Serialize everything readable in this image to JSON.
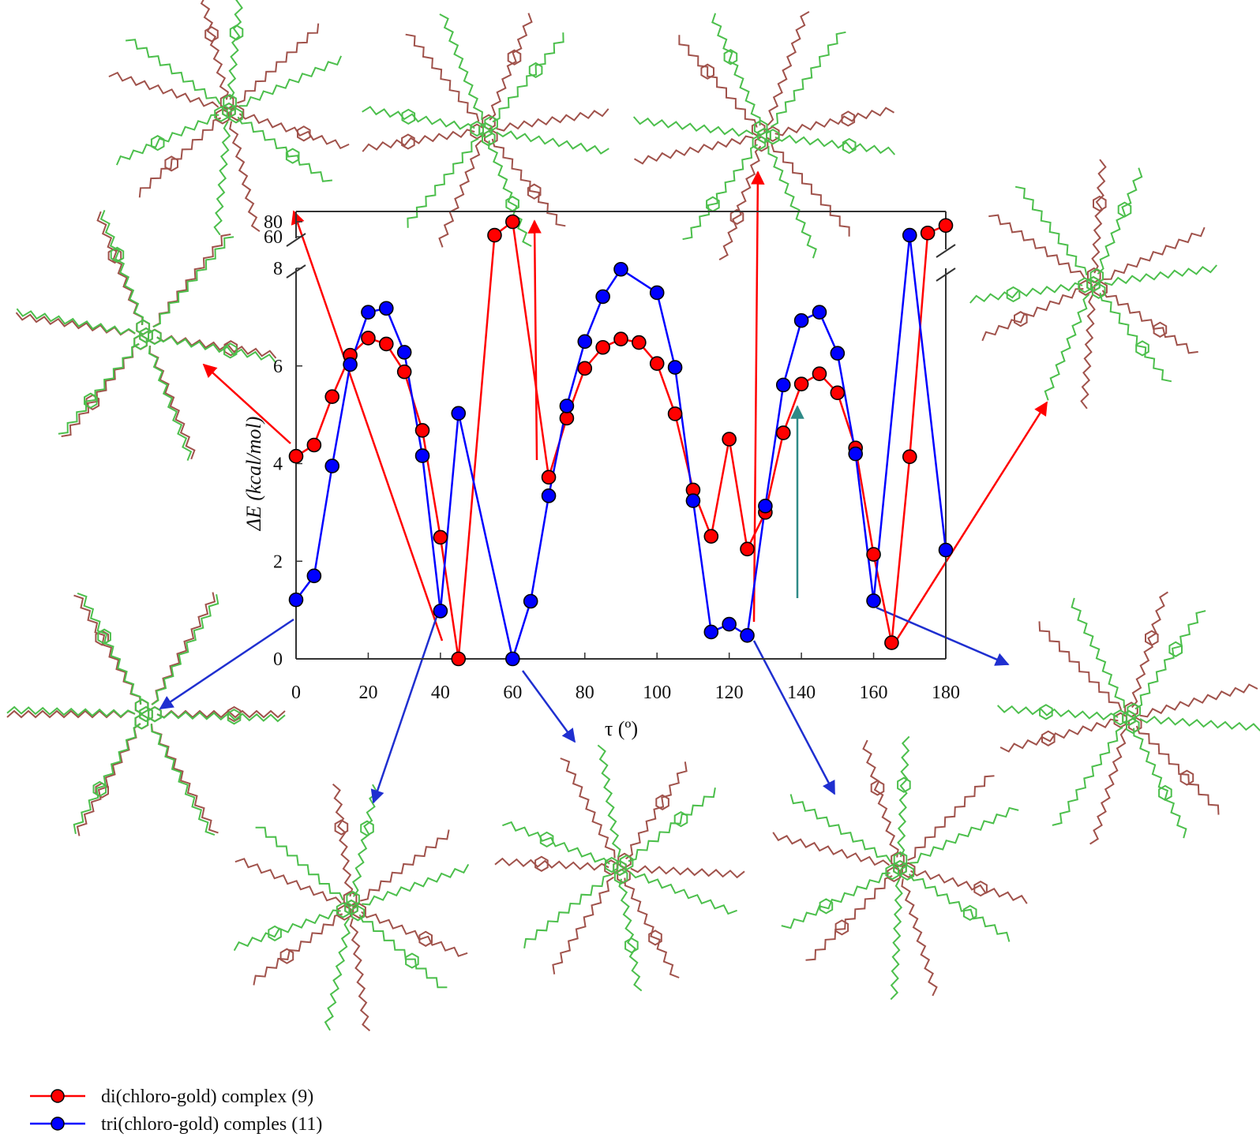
{
  "chart_data": {
    "type": "line",
    "title": "",
    "xlabel": "τ (º)",
    "ylabel": "ΔE (kcal/mol)",
    "xlim": [
      0,
      180
    ],
    "ylim_lower": [
      0,
      8
    ],
    "ylim_upper": [
      60,
      80
    ],
    "broken_y_axis": true,
    "x_ticks": [
      0,
      20,
      40,
      60,
      80,
      100,
      120,
      140,
      160,
      180
    ],
    "y_ticks_lower": [
      0,
      2,
      4,
      6,
      8
    ],
    "y_ticks_upper": [
      60,
      80
    ],
    "grid": false,
    "legend_position": "bottom-left",
    "series": [
      {
        "name": "di(chloro-gold) complex (9)",
        "color": "#ff0000",
        "marker_fill": "#ff0000",
        "points": [
          [
            0,
            4.15
          ],
          [
            5,
            4.38
          ],
          [
            10,
            5.37
          ],
          [
            15,
            6.22
          ],
          [
            20,
            6.57
          ],
          [
            25,
            6.45
          ],
          [
            30,
            5.88
          ],
          [
            35,
            4.68
          ],
          [
            40,
            2.49
          ],
          [
            45,
            0.0
          ],
          [
            55,
            62
          ],
          [
            60,
            80
          ],
          [
            70,
            3.72
          ],
          [
            75,
            4.93
          ],
          [
            80,
            5.95
          ],
          [
            85,
            6.38
          ],
          [
            90,
            6.55
          ],
          [
            95,
            6.48
          ],
          [
            100,
            6.05
          ],
          [
            105,
            5.02
          ],
          [
            110,
            3.46
          ],
          [
            115,
            2.51
          ],
          [
            120,
            4.5
          ],
          [
            125,
            2.25
          ],
          [
            130,
            3.0
          ],
          [
            135,
            4.63
          ],
          [
            140,
            5.63
          ],
          [
            145,
            5.84
          ],
          [
            150,
            5.45
          ],
          [
            155,
            4.32
          ],
          [
            160,
            2.14
          ],
          [
            165,
            0.33
          ],
          [
            170,
            4.14
          ],
          [
            175,
            65
          ],
          [
            180,
            75
          ]
        ]
      },
      {
        "name": "tri(chloro-gold) comples (11)",
        "color": "#0000ff",
        "marker_fill": "#0000ff",
        "points": [
          [
            0,
            1.21
          ],
          [
            5,
            1.7
          ],
          [
            10,
            3.95
          ],
          [
            15,
            6.03
          ],
          [
            20,
            7.1
          ],
          [
            25,
            7.18
          ],
          [
            30,
            6.28
          ],
          [
            35,
            4.16
          ],
          [
            40,
            0.98
          ],
          [
            45,
            5.03
          ],
          [
            60,
            0.0
          ],
          [
            65,
            1.18
          ],
          [
            70,
            3.34
          ],
          [
            75,
            5.18
          ],
          [
            80,
            6.5
          ],
          [
            85,
            7.42
          ],
          [
            90,
            7.98
          ],
          [
            100,
            7.5
          ],
          [
            105,
            5.97
          ],
          [
            110,
            3.24
          ],
          [
            115,
            0.55
          ],
          [
            120,
            0.71
          ],
          [
            125,
            0.48
          ],
          [
            130,
            3.13
          ],
          [
            135,
            5.61
          ],
          [
            140,
            6.93
          ],
          [
            145,
            7.1
          ],
          [
            150,
            6.26
          ],
          [
            155,
            4.2
          ],
          [
            160,
            1.19
          ],
          [
            170,
            62
          ],
          [
            180,
            2.23
          ]
        ]
      }
    ]
  },
  "icons": {
    "conformer_structure": "molecular-structure-icon"
  },
  "colors": {
    "red_conformer": "#a0524b",
    "green_conformer": "#4cbf4c",
    "red_series": "#ff0000",
    "blue_series": "#0000ff",
    "teal_arrow": "#2f8a87"
  }
}
